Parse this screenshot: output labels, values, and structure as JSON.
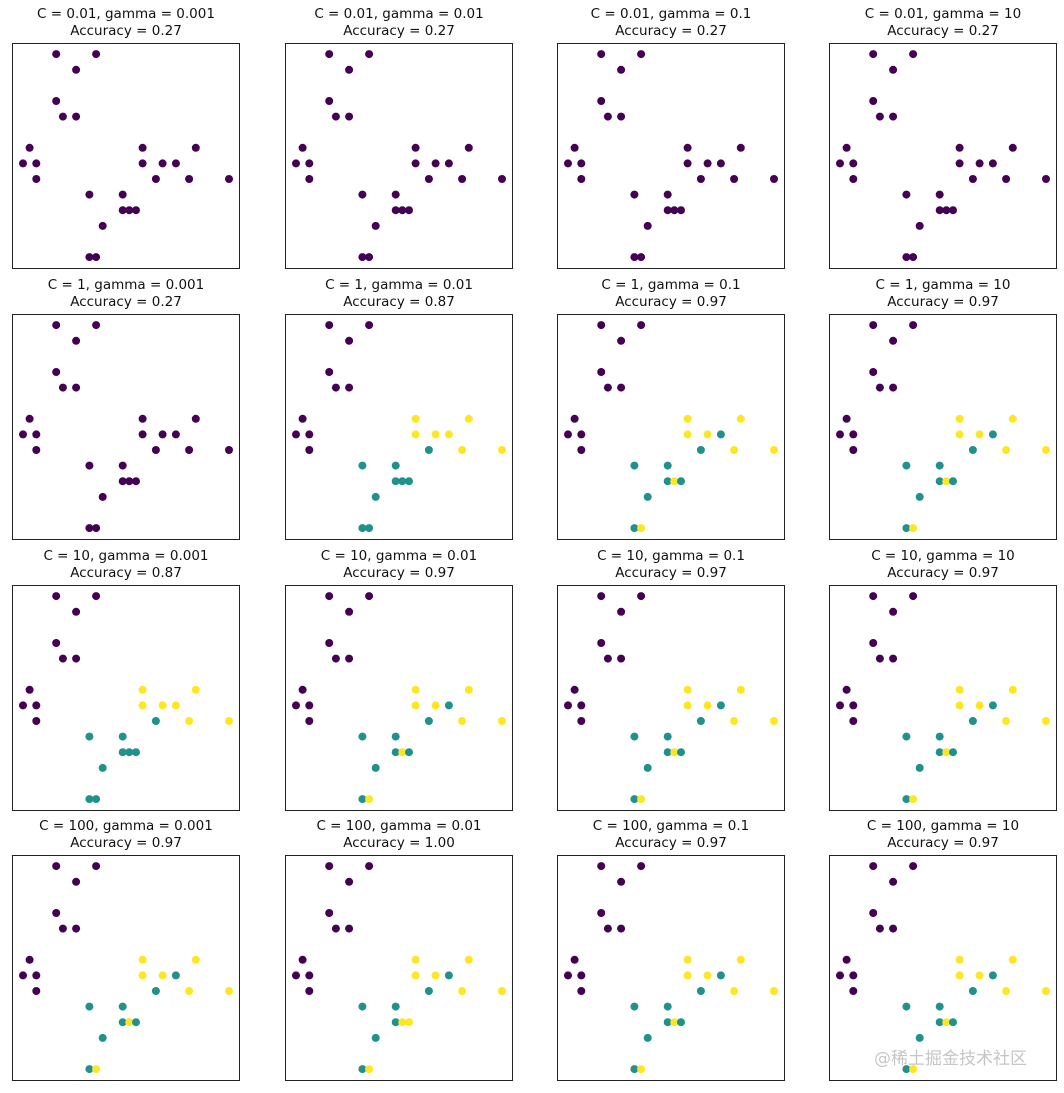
{
  "chart_data": {
    "type": "scatter",
    "layout": "4x4 grid",
    "grid": false,
    "axis_ticks": false,
    "xlim": [
      -1.5,
      32.5
    ],
    "ylim": [
      -0.7,
      13.65
    ],
    "colors": {
      "0": "#440154",
      "1": "#21918c",
      "2": "#fde725"
    },
    "points": [
      [
        5,
        13
      ],
      [
        11,
        13
      ],
      [
        8,
        12
      ],
      [
        5,
        10
      ],
      [
        6,
        9
      ],
      [
        8,
        9
      ],
      [
        1,
        7
      ],
      [
        0,
        6
      ],
      [
        2,
        6
      ],
      [
        2,
        5
      ],
      [
        18,
        7
      ],
      [
        26,
        7
      ],
      [
        18,
        6
      ],
      [
        21,
        6
      ],
      [
        23,
        6
      ],
      [
        20,
        5
      ],
      [
        25,
        5
      ],
      [
        31,
        5
      ],
      [
        10,
        4
      ],
      [
        15,
        4
      ],
      [
        15,
        3
      ],
      [
        16,
        3
      ],
      [
        17,
        3
      ],
      [
        12,
        2
      ],
      [
        10,
        0
      ],
      [
        11,
        0
      ]
    ],
    "panels": [
      {
        "title": "C = 0.01, gamma = 0.001",
        "accuracy": "Accuracy = 0.27",
        "labels": [
          0,
          0,
          0,
          0,
          0,
          0,
          0,
          0,
          0,
          0,
          0,
          0,
          0,
          0,
          0,
          0,
          0,
          0,
          0,
          0,
          0,
          0,
          0,
          0,
          0,
          0
        ]
      },
      {
        "title": "C = 0.01, gamma = 0.01",
        "accuracy": "Accuracy = 0.27",
        "labels": [
          0,
          0,
          0,
          0,
          0,
          0,
          0,
          0,
          0,
          0,
          0,
          0,
          0,
          0,
          0,
          0,
          0,
          0,
          0,
          0,
          0,
          0,
          0,
          0,
          0,
          0
        ]
      },
      {
        "title": "C = 0.01, gamma = 0.1",
        "accuracy": "Accuracy = 0.27",
        "labels": [
          0,
          0,
          0,
          0,
          0,
          0,
          0,
          0,
          0,
          0,
          0,
          0,
          0,
          0,
          0,
          0,
          0,
          0,
          0,
          0,
          0,
          0,
          0,
          0,
          0,
          0
        ]
      },
      {
        "title": "C = 0.01, gamma = 10",
        "accuracy": "Accuracy = 0.27",
        "labels": [
          0,
          0,
          0,
          0,
          0,
          0,
          0,
          0,
          0,
          0,
          0,
          0,
          0,
          0,
          0,
          0,
          0,
          0,
          0,
          0,
          0,
          0,
          0,
          0,
          0,
          0
        ]
      },
      {
        "title": "C = 1, gamma = 0.001",
        "accuracy": "Accuracy = 0.27",
        "labels": [
          0,
          0,
          0,
          0,
          0,
          0,
          0,
          0,
          0,
          0,
          0,
          0,
          0,
          0,
          0,
          0,
          0,
          0,
          0,
          0,
          0,
          0,
          0,
          0,
          0,
          0
        ]
      },
      {
        "title": "C = 1, gamma = 0.01",
        "accuracy": "Accuracy = 0.87",
        "labels": [
          0,
          0,
          0,
          0,
          0,
          0,
          0,
          0,
          0,
          0,
          2,
          2,
          2,
          2,
          2,
          1,
          2,
          2,
          1,
          1,
          1,
          1,
          1,
          1,
          1,
          1
        ]
      },
      {
        "title": "C = 1, gamma = 0.1",
        "accuracy": "Accuracy = 0.97",
        "labels": [
          0,
          0,
          0,
          0,
          0,
          0,
          0,
          0,
          0,
          0,
          2,
          2,
          2,
          2,
          1,
          1,
          2,
          2,
          1,
          1,
          1,
          2,
          1,
          1,
          1,
          2
        ]
      },
      {
        "title": "C = 1, gamma = 10",
        "accuracy": "Accuracy = 0.97",
        "labels": [
          0,
          0,
          0,
          0,
          0,
          0,
          0,
          0,
          0,
          0,
          2,
          2,
          2,
          2,
          1,
          1,
          2,
          2,
          1,
          1,
          1,
          2,
          1,
          1,
          1,
          2
        ]
      },
      {
        "title": "C = 10, gamma = 0.001",
        "accuracy": "Accuracy = 0.87",
        "labels": [
          0,
          0,
          0,
          0,
          0,
          0,
          0,
          0,
          0,
          0,
          2,
          2,
          2,
          2,
          2,
          1,
          2,
          2,
          1,
          1,
          1,
          1,
          1,
          1,
          1,
          1
        ]
      },
      {
        "title": "C = 10, gamma = 0.01",
        "accuracy": "Accuracy = 0.97",
        "labels": [
          0,
          0,
          0,
          0,
          0,
          0,
          0,
          0,
          0,
          0,
          2,
          2,
          2,
          2,
          1,
          1,
          2,
          2,
          1,
          1,
          1,
          2,
          1,
          1,
          1,
          2
        ]
      },
      {
        "title": "C = 10, gamma = 0.1",
        "accuracy": "Accuracy = 0.97",
        "labels": [
          0,
          0,
          0,
          0,
          0,
          0,
          0,
          0,
          0,
          0,
          2,
          2,
          2,
          2,
          1,
          1,
          2,
          2,
          1,
          1,
          1,
          2,
          1,
          1,
          1,
          2
        ]
      },
      {
        "title": "C = 10, gamma = 10",
        "accuracy": "Accuracy = 0.97",
        "labels": [
          0,
          0,
          0,
          0,
          0,
          0,
          0,
          0,
          0,
          0,
          2,
          2,
          2,
          2,
          1,
          1,
          2,
          2,
          1,
          1,
          1,
          2,
          1,
          1,
          1,
          2
        ]
      },
      {
        "title": "C = 100, gamma = 0.001",
        "accuracy": "Accuracy = 0.97",
        "labels": [
          0,
          0,
          0,
          0,
          0,
          0,
          0,
          0,
          0,
          0,
          2,
          2,
          2,
          2,
          1,
          1,
          2,
          2,
          1,
          1,
          1,
          2,
          1,
          1,
          1,
          2
        ]
      },
      {
        "title": "C = 100, gamma = 0.01",
        "accuracy": "Accuracy = 1.00",
        "labels": [
          0,
          0,
          0,
          0,
          0,
          0,
          0,
          0,
          0,
          0,
          2,
          2,
          2,
          2,
          1,
          1,
          2,
          2,
          1,
          1,
          1,
          2,
          2,
          1,
          1,
          2
        ]
      },
      {
        "title": "C = 100, gamma = 0.1",
        "accuracy": "Accuracy = 0.97",
        "labels": [
          0,
          0,
          0,
          0,
          0,
          0,
          0,
          0,
          0,
          0,
          2,
          2,
          2,
          2,
          1,
          1,
          2,
          2,
          1,
          1,
          1,
          2,
          1,
          1,
          1,
          2
        ]
      },
      {
        "title": "C = 100, gamma = 10",
        "accuracy": "Accuracy = 0.97",
        "labels": [
          0,
          0,
          0,
          0,
          0,
          0,
          0,
          0,
          0,
          0,
          2,
          2,
          2,
          2,
          1,
          1,
          2,
          2,
          1,
          1,
          1,
          2,
          1,
          1,
          1,
          2
        ]
      }
    ]
  },
  "watermark": "@稀土掘金技术社区"
}
